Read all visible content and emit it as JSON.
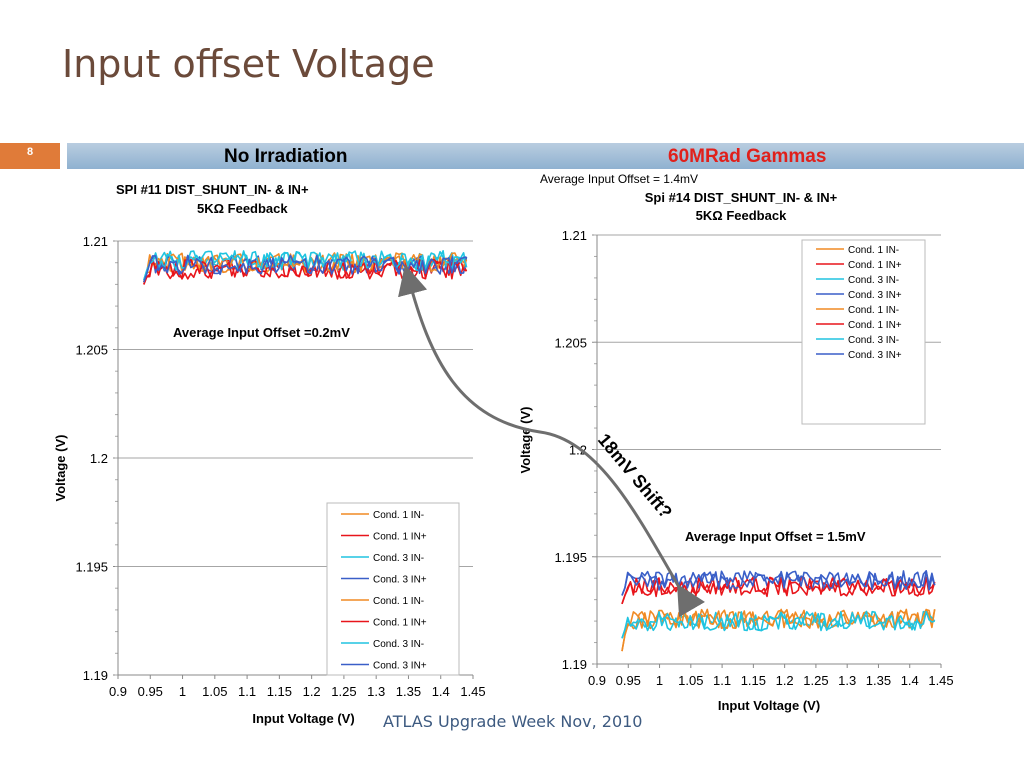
{
  "slide": {
    "title": "Input offset Voltage",
    "number": "8",
    "heading_left": "No  Irradiation",
    "heading_right": "60MRad Gammas",
    "heading_right_color": "#e0201b",
    "footer": "ATLAS  Upgrade Week  Nov, 2010",
    "shift_annotation": "18mV Shift?"
  },
  "chart_data": [
    {
      "type": "line",
      "title": "SPI #11   DIST_SHUNT_IN- & IN+",
      "subtitle": "5KΩ Feedback",
      "xlabel": "Input Voltage (V)",
      "ylabel": "Voltage (V)",
      "annotation": "Average Input Offset  =0.2mV",
      "xlim": [
        0.9,
        1.45
      ],
      "ylim": [
        1.19,
        1.21
      ],
      "xticks": [
        "0.9",
        "0.95",
        "1",
        "1.05",
        "1.1",
        "1.15",
        "1.2",
        "1.25",
        "1.3",
        "1.35",
        "1.4",
        "1.45"
      ],
      "yticks": [
        "1.21",
        "1.205",
        "1.2",
        "1.195",
        "1.19"
      ],
      "legend_position": "bottom-right",
      "series": [
        {
          "name": "Cond. 1 IN-",
          "color": "#f08a24",
          "level": 1.209,
          "start": 1.2081
        },
        {
          "name": "Cond. 1 IN+",
          "color": "#e8151b",
          "level": 1.2087,
          "start": 1.208
        },
        {
          "name": "Cond. 3 IN-",
          "color": "#20c4e0",
          "level": 1.2091,
          "start": 1.2082
        },
        {
          "name": "Cond. 3 IN+",
          "color": "#3a5fc8",
          "level": 1.2089,
          "start": 1.2081
        },
        {
          "name": "Cond. 1 IN-",
          "color": "#f08a24",
          "level": 1.209,
          "start": 1.2081
        },
        {
          "name": "Cond. 1 IN+",
          "color": "#e8151b",
          "level": 1.2087,
          "start": 1.208
        },
        {
          "name": "Cond. 3 IN-",
          "color": "#20c4e0",
          "level": 1.2091,
          "start": 1.2082
        },
        {
          "name": "Cond. 3 IN+",
          "color": "#3a5fc8",
          "level": 1.2089,
          "start": 1.2081
        }
      ]
    },
    {
      "type": "line",
      "top_note": "Average Input  Offset  = 1.4mV",
      "title": "Spi #14 DIST_SHUNT_IN- & IN+",
      "subtitle": "5KΩ Feedback",
      "xlabel": "Input Voltage (V)",
      "ylabel": "Voltage (V)",
      "annotation": "Average Input Offset  = 1.5mV",
      "xlim": [
        0.9,
        1.45
      ],
      "ylim": [
        1.19,
        1.21
      ],
      "xticks": [
        "0.9",
        "0.95",
        "1",
        "1.05",
        "1.1",
        "1.15",
        "1.2",
        "1.25",
        "1.3",
        "1.35",
        "1.4",
        "1.45"
      ],
      "yticks": [
        "1.21",
        "1.205",
        "1.2",
        "1.195",
        "1.19"
      ],
      "legend_position": "top-right",
      "series": [
        {
          "name": "Cond. 1 IN-",
          "color": "#f08a24",
          "level": 1.1921,
          "start": 1.1906
        },
        {
          "name": "Cond. 1 IN+",
          "color": "#e8151b",
          "level": 1.1936,
          "start": 1.1928
        },
        {
          "name": "Cond. 3 IN-",
          "color": "#20c4e0",
          "level": 1.192,
          "start": 1.1912
        },
        {
          "name": "Cond. 3 IN+",
          "color": "#3a5fc8",
          "level": 1.1939,
          "start": 1.1932
        },
        {
          "name": "Cond. 1 IN-",
          "color": "#f08a24",
          "level": 1.1921,
          "start": 1.1906
        },
        {
          "name": "Cond. 1 IN+",
          "color": "#e8151b",
          "level": 1.1936,
          "start": 1.1928
        },
        {
          "name": "Cond. 3 IN-",
          "color": "#20c4e0",
          "level": 1.192,
          "start": 1.1912
        },
        {
          "name": "Cond. 3 IN+",
          "color": "#3a5fc8",
          "level": 1.1939,
          "start": 1.1932
        }
      ]
    }
  ]
}
